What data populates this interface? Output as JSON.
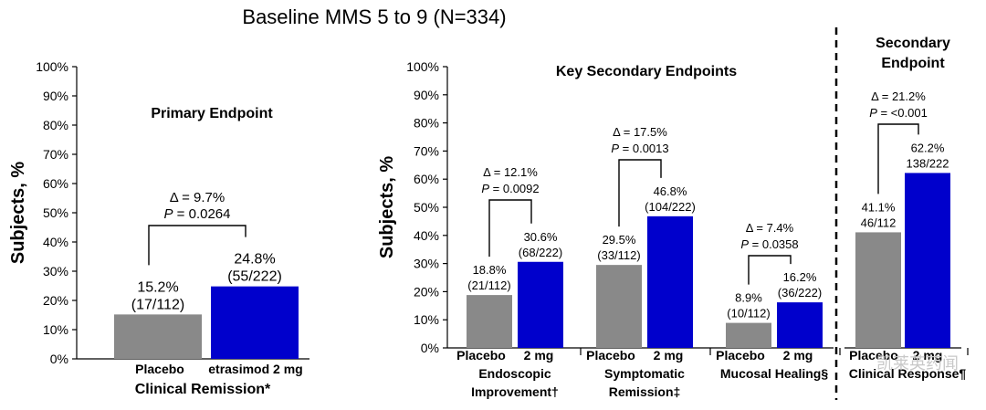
{
  "main_title": "Baseline MMS 5 to 9 (N=334)",
  "watermark": "凯莱英药闻",
  "colors": {
    "placebo": "#898989",
    "drug": "#0000cc",
    "axis": "#000000"
  },
  "chart_data": [
    {
      "type": "bar",
      "title": "Primary Endpoint",
      "ylabel": "Subjects, %",
      "ylim": [
        0,
        100
      ],
      "yticks": [
        "0%",
        "10%",
        "20%",
        "30%",
        "40%",
        "50%",
        "60%",
        "70%",
        "80%",
        "90%",
        "100%"
      ],
      "groups": [
        {
          "name": "Clinical Remission*",
          "categories": [
            "Placebo",
            "etrasimod 2 mg"
          ],
          "values": [
            15.2,
            24.8
          ],
          "labels": [
            [
              "15.2%",
              "(17/112)"
            ],
            [
              "24.8%",
              "(55/222)"
            ]
          ],
          "delta": "Δ = 9.7%",
          "p": "P = 0.0264"
        }
      ]
    },
    {
      "type": "bar",
      "title": "Key Secondary Endpoints",
      "ylabel": "Subjects, %",
      "ylim": [
        0,
        100
      ],
      "yticks": [
        "0%",
        "10%",
        "20%",
        "30%",
        "40%",
        "50%",
        "60%",
        "70%",
        "80%",
        "90%",
        "100%"
      ],
      "groups": [
        {
          "name": [
            "Endoscopic",
            "Improvement†"
          ],
          "categories": [
            "Placebo",
            "2 mg"
          ],
          "values": [
            18.8,
            30.6
          ],
          "labels": [
            [
              "18.8%",
              "(21/112)"
            ],
            [
              "30.6%",
              "(68/222)"
            ]
          ],
          "delta": "Δ = 12.1%",
          "p": "P = 0.0092"
        },
        {
          "name": [
            "Symptomatic",
            "Remission‡"
          ],
          "categories": [
            "Placebo",
            "2 mg"
          ],
          "values": [
            29.5,
            46.8
          ],
          "labels": [
            [
              "29.5%",
              "(33/112)"
            ],
            [
              "46.8%",
              "(104/222)"
            ]
          ],
          "delta": "Δ = 17.5%",
          "p": "P = 0.0013"
        },
        {
          "name": [
            "Mucosal Healing§"
          ],
          "categories": [
            "Placebo",
            "2 mg"
          ],
          "values": [
            8.9,
            16.2
          ],
          "labels": [
            [
              "8.9%",
              "(10/112)"
            ],
            [
              "16.2%",
              "(36/222)"
            ]
          ],
          "delta": "Δ = 7.4%",
          "p": "P = 0.0358"
        }
      ]
    },
    {
      "type": "bar",
      "title": [
        "Secondary",
        "Endpoint"
      ],
      "groups": [
        {
          "name": [
            "Clinical Response¶"
          ],
          "categories": [
            "Placebo",
            "2 mg"
          ],
          "values": [
            41.1,
            62.2
          ],
          "labels": [
            [
              "41.1%",
              "46/112"
            ],
            [
              "62.2%",
              "138/222"
            ]
          ],
          "delta": "Δ = 21.2%",
          "p": "P = <0.001"
        }
      ]
    }
  ]
}
